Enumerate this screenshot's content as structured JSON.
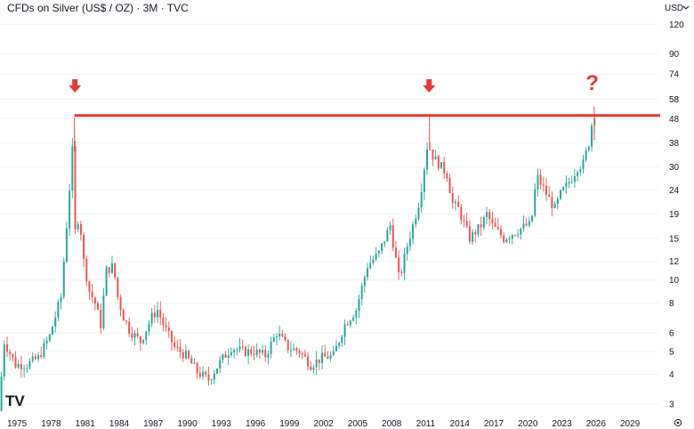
{
  "header": {
    "title": "CFDs on Silver (US$ / OZ) · 3M · TVC"
  },
  "currency": {
    "label": "USD",
    "chevron_icon": "chevron-down-icon"
  },
  "logo": {
    "text": "TV"
  },
  "settings_icon": "gear-icon",
  "question_mark": "?",
  "colors": {
    "up": "#26a69a",
    "down": "#ef5350",
    "line": "#e53935",
    "arrow": "#e53935",
    "text": "#131722",
    "grid": "#f0f3fa"
  },
  "chart_data": {
    "type": "candlestick",
    "title": "CFDs on Silver (US$ / OZ) · 3M · TVC",
    "y_scale": "log",
    "ylim": [
      2.8,
      130
    ],
    "y_ticks": [
      120,
      90,
      74,
      58,
      48,
      38,
      30,
      24,
      19,
      15,
      12,
      10,
      8,
      6,
      5,
      4,
      3
    ],
    "xlim": [
      1973.5,
      2031.5
    ],
    "x_ticks": [
      1975,
      1978,
      1981,
      1984,
      1987,
      1990,
      1993,
      1996,
      1999,
      2002,
      2005,
      2008,
      2011,
      2014,
      2017,
      2020,
      2023,
      2026,
      2029
    ],
    "resistance": 49.5,
    "markers": [
      {
        "x": 1980.1,
        "label": "peak-1980"
      },
      {
        "x": 2011.3,
        "label": "peak-2011"
      }
    ],
    "price_path": [
      [
        1973.5,
        2.8
      ],
      [
        1974.0,
        5.5
      ],
      [
        1975.0,
        4.4
      ],
      [
        1976.0,
        4.4
      ],
      [
        1977.0,
        4.7
      ],
      [
        1978.0,
        5.8
      ],
      [
        1979.0,
        8.5
      ],
      [
        1979.5,
        17
      ],
      [
        1980.0,
        35
      ],
      [
        1980.25,
        16
      ],
      [
        1980.6,
        19
      ],
      [
        1981.0,
        12
      ],
      [
        1981.5,
        9
      ],
      [
        1982.0,
        8
      ],
      [
        1982.5,
        6.5
      ],
      [
        1983.0,
        11
      ],
      [
        1983.6,
        11.5
      ],
      [
        1984.0,
        8.5
      ],
      [
        1984.5,
        7.0
      ],
      [
        1985.0,
        6.2
      ],
      [
        1986.0,
        5.5
      ],
      [
        1987.0,
        7.0
      ],
      [
        1987.5,
        7.5
      ],
      [
        1988.0,
        6.5
      ],
      [
        1989.0,
        5.2
      ],
      [
        1990.0,
        4.8
      ],
      [
        1991.0,
        4.1
      ],
      [
        1992.0,
        3.8
      ],
      [
        1993.0,
        4.5
      ],
      [
        1994.0,
        5.2
      ],
      [
        1995.0,
        5.0
      ],
      [
        1996.0,
        5.0
      ],
      [
        1997.0,
        4.8
      ],
      [
        1998.0,
        6.0
      ],
      [
        1999.0,
        5.2
      ],
      [
        2000.0,
        5.0
      ],
      [
        2001.0,
        4.4
      ],
      [
        2002.0,
        4.7
      ],
      [
        2003.0,
        4.8
      ],
      [
        2004.0,
        6.5
      ],
      [
        2005.0,
        7.5
      ],
      [
        2006.0,
        11.5
      ],
      [
        2007.0,
        13
      ],
      [
        2008.0,
        17
      ],
      [
        2008.8,
        10
      ],
      [
        2009.5,
        14
      ],
      [
        2010.0,
        17
      ],
      [
        2010.6,
        22
      ],
      [
        2011.0,
        30
      ],
      [
        2011.3,
        38
      ],
      [
        2011.8,
        33
      ],
      [
        2012.5,
        30
      ],
      [
        2013.0,
        28
      ],
      [
        2013.5,
        21
      ],
      [
        2014.0,
        20
      ],
      [
        2015.0,
        15
      ],
      [
        2016.0,
        17
      ],
      [
        2016.5,
        19
      ],
      [
        2017.0,
        17
      ],
      [
        2018.0,
        15
      ],
      [
        2019.0,
        16
      ],
      [
        2020.0,
        17
      ],
      [
        2020.4,
        17
      ],
      [
        2020.8,
        25
      ],
      [
        2021.0,
        27
      ],
      [
        2022.0,
        22
      ],
      [
        2022.5,
        20
      ],
      [
        2023.0,
        23
      ],
      [
        2024.0,
        27
      ],
      [
        2024.5,
        30
      ],
      [
        2025.0,
        31
      ],
      [
        2025.5,
        38
      ],
      [
        2025.9,
        50.5
      ]
    ]
  }
}
